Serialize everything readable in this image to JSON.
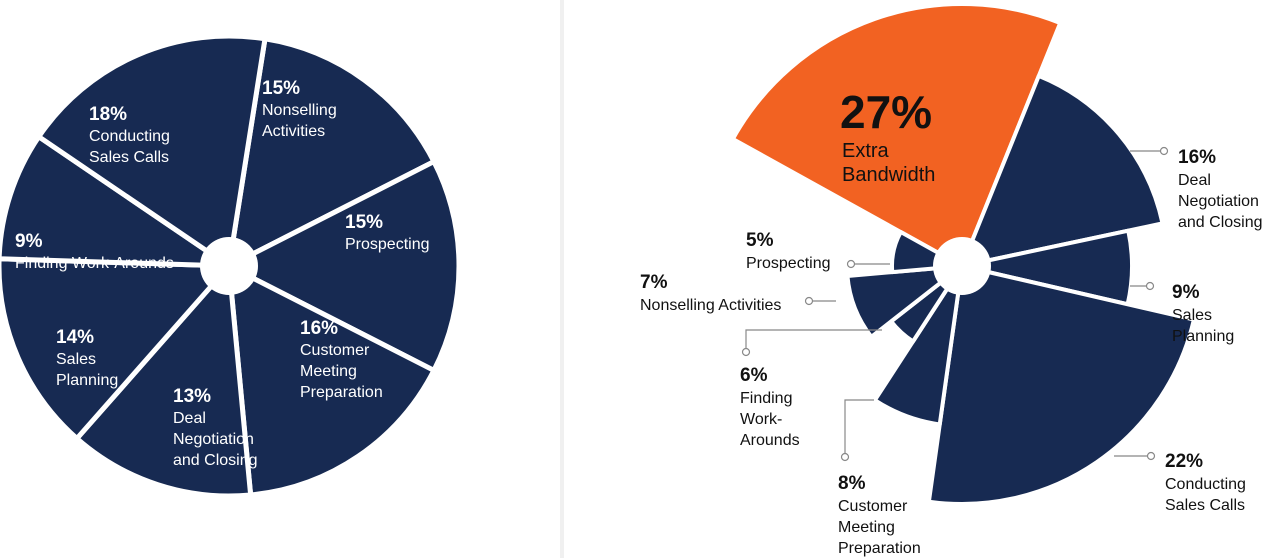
{
  "chart_data": [
    {
      "type": "pie",
      "categories": [
        "Nonselling Activities",
        "Prospecting",
        "Customer Meeting Preparation",
        "Deal Negotiation and Closing",
        "Sales Planning",
        "Finding Work-Arounds",
        "Conducting Sales Calls"
      ],
      "values": [
        15,
        15,
        16,
        13,
        14,
        9,
        18
      ],
      "value_labels": [
        "15%",
        "15%",
        "16%",
        "13%",
        "14%",
        "9%",
        "18%"
      ],
      "label_lines": [
        [
          "Nonselling",
          "Activities"
        ],
        [
          "Prospecting"
        ],
        [
          "Customer",
          "Meeting",
          "Preparation"
        ],
        [
          "Deal",
          "Negotiation",
          "and Closing"
        ],
        [
          "Sales",
          "Planning"
        ],
        [
          "Finding Work-Arounds"
        ],
        [
          "Conducting",
          "Sales Calls"
        ]
      ],
      "slice_color": "#172a52",
      "separator_color": "#ffffff"
    },
    {
      "type": "pie",
      "variant": "polar-area",
      "categories": [
        "Extra Bandwidth",
        "Deal Negotiation and Closing",
        "Sales Planning",
        "Conducting Sales Calls",
        "Customer Meeting Preparation",
        "Finding Work-Arounds",
        "Nonselling Activities",
        "Prospecting"
      ],
      "values": [
        27,
        16,
        9,
        22,
        8,
        6,
        7,
        5
      ],
      "value_labels": [
        "27%",
        "16%",
        "9%",
        "22%",
        "8%",
        "6%",
        "7%",
        "5%"
      ],
      "label_lines": [
        [
          "Extra",
          "Bandwidth"
        ],
        [
          "Deal",
          "Negotiation",
          "and Closing"
        ],
        [
          "Sales",
          "Planning"
        ],
        [
          "Conducting",
          "Sales Calls"
        ],
        [
          "Customer",
          "Meeting",
          "Preparation"
        ],
        [
          "Finding",
          "Work-",
          "Arounds"
        ],
        [
          "Nonselling Activities"
        ],
        [
          "Prospecting"
        ]
      ],
      "highlight_color": "#f26222",
      "slice_color": "#172a52",
      "leader_color": "#888888"
    }
  ]
}
